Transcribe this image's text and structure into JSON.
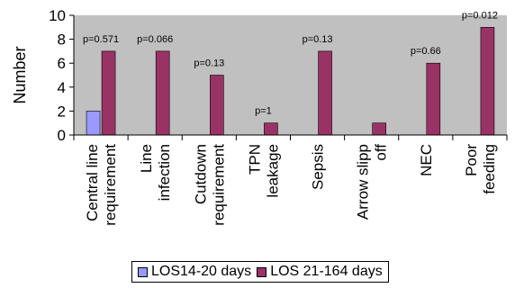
{
  "chart_data": {
    "type": "bar",
    "categories": [
      [
        "Central line",
        "requirement"
      ],
      [
        "Line",
        "infection"
      ],
      [
        "Cutdown",
        "requirement"
      ],
      [
        "TPN",
        "leakage"
      ],
      [
        "Sepsis"
      ],
      [
        "Arrow slipp",
        "off"
      ],
      [
        "NEC"
      ],
      [
        "Poor",
        "feeding"
      ]
    ],
    "series": [
      {
        "name": "LOS14-20 days",
        "color": "#9999ff",
        "values": [
          2,
          0,
          0,
          0,
          0,
          0,
          0,
          0
        ]
      },
      {
        "name": "LOS 21-164 days",
        "color": "#993366",
        "values": [
          7,
          7,
          5,
          1,
          7,
          1,
          6,
          9
        ]
      }
    ],
    "annotations": [
      "p=0.571",
      "p=0.066",
      "p=0.13",
      "p=1",
      "p=0.13",
      "",
      "p=0.66",
      "p=0.012"
    ],
    "ylabel": "Number",
    "xlabel": "",
    "title": "",
    "ylim": [
      0,
      10
    ],
    "yticks": [
      0,
      2,
      4,
      6,
      8,
      10
    ],
    "grid": false,
    "legend_position": "bottom",
    "plot_background": "#c0c0c0"
  }
}
